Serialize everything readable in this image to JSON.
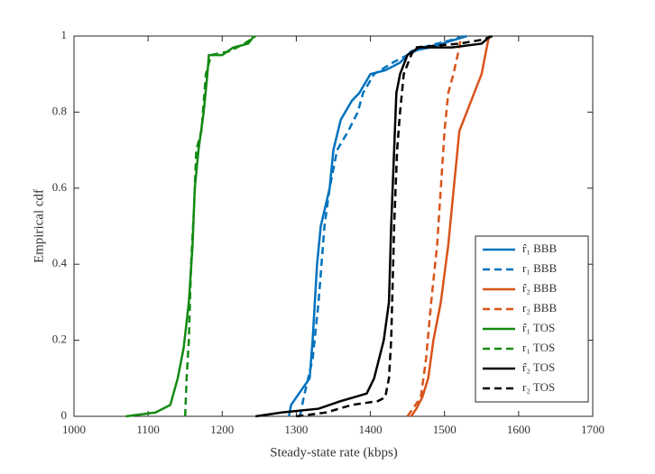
{
  "chart_data": {
    "type": "line",
    "x_label": "Steady-state rate (kbps)",
    "y_label": "Empirical cdf",
    "xlim": [
      1000,
      1700
    ],
    "xticks": [
      1000,
      1100,
      1200,
      1300,
      1400,
      1500,
      1600,
      1700
    ],
    "ylim": [
      0,
      1
    ],
    "yticks": [
      0,
      0.2,
      0.4,
      0.6,
      0.8,
      1
    ],
    "legend": "lower right",
    "series": [
      {
        "name": "r̂₁ BBB",
        "color": "#0072BD",
        "dashed": false,
        "x": [
          1290,
          1293,
          1300,
          1318,
          1322,
          1328,
          1333,
          1345,
          1350,
          1360,
          1375,
          1385,
          1400,
          1420,
          1440,
          1455,
          1480,
          1530
        ],
        "values": [
          0,
          0.03,
          0.05,
          0.1,
          0.2,
          0.4,
          0.5,
          0.6,
          0.7,
          0.78,
          0.83,
          0.85,
          0.9,
          0.91,
          0.93,
          0.96,
          0.97,
          1
        ]
      },
      {
        "name": "r₁ BBB",
        "color": "#0072BD",
        "dashed": true,
        "x": [
          1305,
          1310,
          1322,
          1330,
          1338,
          1345,
          1355,
          1370,
          1383,
          1390,
          1405,
          1430,
          1450,
          1470,
          1510,
          1525
        ],
        "values": [
          0,
          0.05,
          0.15,
          0.3,
          0.5,
          0.6,
          0.7,
          0.75,
          0.8,
          0.85,
          0.9,
          0.93,
          0.95,
          0.97,
          0.99,
          1
        ]
      },
      {
        "name": "r̂₂ BBB",
        "color": "#D95319",
        "dashed": false,
        "x": [
          1455,
          1462,
          1470,
          1478,
          1485,
          1495,
          1505,
          1510,
          1515,
          1520,
          1530,
          1540,
          1550,
          1555,
          1560
        ],
        "values": [
          0,
          0.02,
          0.05,
          0.1,
          0.2,
          0.3,
          0.45,
          0.55,
          0.65,
          0.75,
          0.8,
          0.85,
          0.9,
          0.95,
          1
        ]
      },
      {
        "name": "r₂ BBB",
        "color": "#D95319",
        "dashed": true,
        "x": [
          1450,
          1468,
          1475,
          1482,
          1490,
          1495,
          1500,
          1505,
          1512,
          1520,
          1522
        ],
        "values": [
          0,
          0.05,
          0.15,
          0.3,
          0.45,
          0.6,
          0.75,
          0.85,
          0.9,
          0.97,
          1
        ]
      },
      {
        "name": "r̂₁ TOS",
        "color": "#138A13",
        "dashed": false,
        "x": [
          1070,
          1110,
          1130,
          1140,
          1148,
          1155,
          1160,
          1163,
          1168,
          1175,
          1180,
          1182,
          1200,
          1215,
          1235,
          1243
        ],
        "values": [
          0,
          0.01,
          0.03,
          0.1,
          0.18,
          0.3,
          0.45,
          0.6,
          0.7,
          0.8,
          0.9,
          0.95,
          0.95,
          0.97,
          0.98,
          1
        ]
      },
      {
        "name": "r₁ TOS",
        "color": "#138A13",
        "dashed": true,
        "x": [
          1150,
          1152,
          1155,
          1158,
          1162,
          1165,
          1172,
          1178,
          1185,
          1210,
          1230,
          1245
        ],
        "values": [
          0,
          0.1,
          0.2,
          0.4,
          0.55,
          0.7,
          0.75,
          0.9,
          0.95,
          0.96,
          0.98,
          1
        ]
      },
      {
        "name": "r̂₂ TOS",
        "color": "#000000",
        "dashed": false,
        "x": [
          1245,
          1280,
          1330,
          1360,
          1395,
          1405,
          1418,
          1425,
          1428,
          1432,
          1435,
          1440,
          1450,
          1465,
          1510,
          1550,
          1562
        ],
        "values": [
          0,
          0.01,
          0.02,
          0.04,
          0.06,
          0.1,
          0.2,
          0.3,
          0.5,
          0.7,
          0.85,
          0.9,
          0.95,
          0.97,
          0.97,
          0.98,
          1
        ]
      },
      {
        "name": "r₂ TOS",
        "color": "#000000",
        "dashed": true,
        "x": [
          1300,
          1340,
          1375,
          1410,
          1420,
          1425,
          1428,
          1432,
          1436,
          1440,
          1445,
          1455,
          1460,
          1520,
          1550,
          1565
        ],
        "values": [
          0,
          0.01,
          0.03,
          0.04,
          0.05,
          0.1,
          0.2,
          0.5,
          0.7,
          0.8,
          0.9,
          0.95,
          0.97,
          0.98,
          0.99,
          1
        ]
      }
    ]
  }
}
